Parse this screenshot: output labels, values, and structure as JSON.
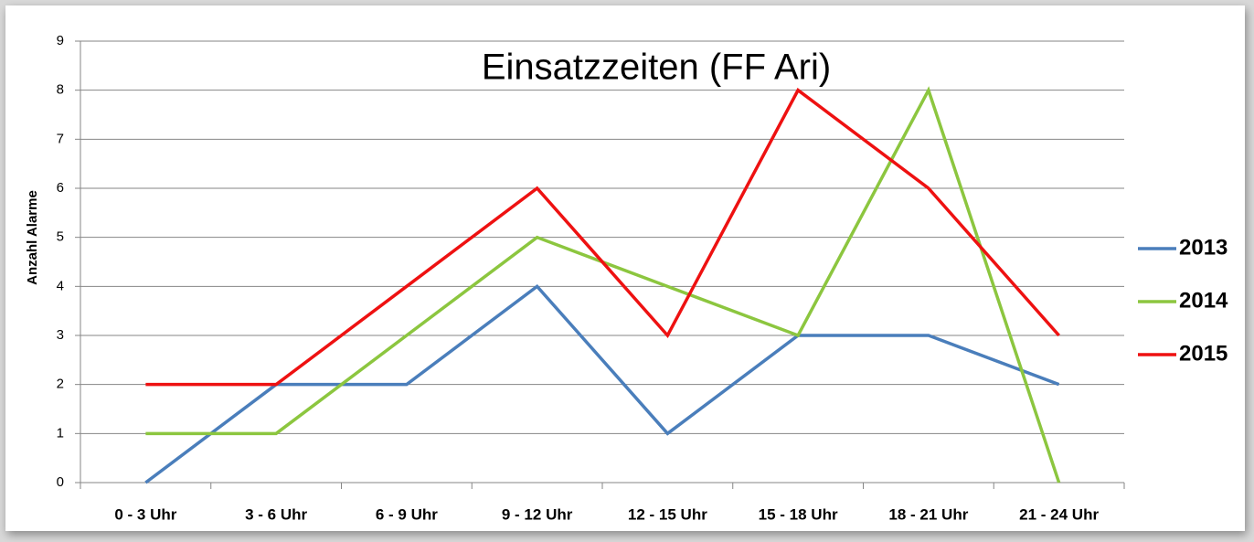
{
  "chart_data": {
    "type": "line",
    "title": "Einsatzzeiten (FF Ari)",
    "y_label": "Anzahl Alarme",
    "categories": [
      "0 - 3 Uhr",
      "3 - 6 Uhr",
      "6 - 9 Uhr",
      "9 - 12 Uhr",
      "12 - 15 Uhr",
      "15 - 18 Uhr",
      "18 - 21 Uhr",
      "21 - 24 Uhr"
    ],
    "series": [
      {
        "name": "2013",
        "color": "#4a7ebb",
        "values": [
          0,
          2,
          2,
          4,
          1,
          3,
          3,
          2
        ]
      },
      {
        "name": "2014",
        "color": "#8cc63f",
        "values": [
          1,
          1,
          3,
          5,
          4,
          3,
          8,
          0
        ]
      },
      {
        "name": "2015",
        "color": "#ee1111",
        "values": [
          2,
          2,
          4,
          6,
          3,
          8,
          6,
          3
        ]
      }
    ],
    "ylim": [
      0,
      9
    ],
    "yticks": [
      0,
      1,
      2,
      3,
      4,
      5,
      6,
      7,
      8,
      9
    ],
    "grid": true,
    "legend": "right"
  }
}
